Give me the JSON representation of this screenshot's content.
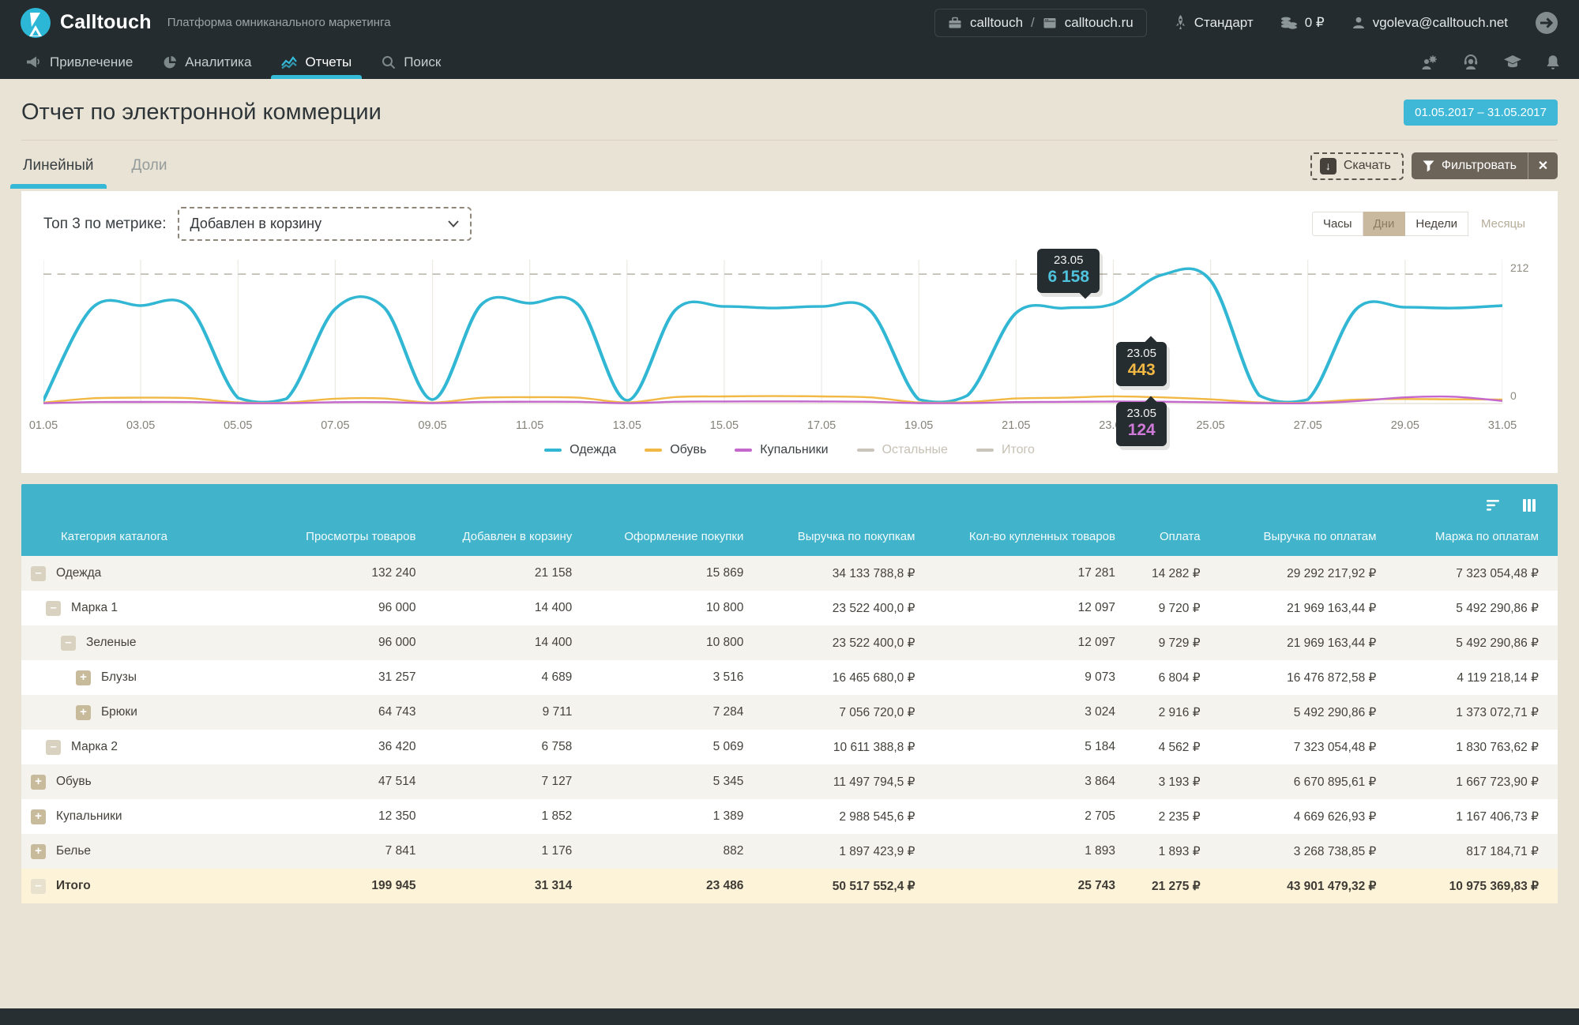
{
  "header": {
    "logo_text": "Calltouch",
    "tagline": "Платформа омниканального маркетинга",
    "account": {
      "company": "calltouch",
      "separator": "/",
      "site": "calltouch.ru"
    },
    "plan": "Стандарт",
    "balance": "0 ₽",
    "user_email": "vgoleva@calltouch.net"
  },
  "nav": {
    "items": [
      {
        "label": "Привлечение",
        "active": false
      },
      {
        "label": "Аналитика",
        "active": false
      },
      {
        "label": "Отчеты",
        "active": true
      },
      {
        "label": "Поиск",
        "active": false
      }
    ]
  },
  "page": {
    "title": "Отчет по электронной коммерции",
    "date_range": "01.05.2017 – 31.05.2017",
    "tabs": [
      {
        "label": "Линейный"
      },
      {
        "label": "Доли"
      }
    ],
    "download_label": "Скачать",
    "filter_label": "Фильтровать",
    "close_label": "✕"
  },
  "chart": {
    "metric_label": "Топ 3 по метрике:",
    "metric_value": "Добавлен в корзину",
    "periods": [
      {
        "label": "Часы",
        "state": "normal"
      },
      {
        "label": "Дни",
        "state": "active"
      },
      {
        "label": "Недели",
        "state": "normal"
      },
      {
        "label": "Месяцы",
        "state": "disabled"
      }
    ]
  },
  "chart_data": {
    "type": "line",
    "title": "Топ 3 по метрике: Добавлен в корзину, по дням 01.05.2017 – 31.05.2017",
    "x": [
      "01.05",
      "02.05",
      "03.05",
      "04.05",
      "05.05",
      "06.05",
      "07.05",
      "08.05",
      "09.05",
      "10.05",
      "11.05",
      "12.05",
      "13.05",
      "14.05",
      "15.05",
      "16.05",
      "17.05",
      "18.05",
      "19.05",
      "20.05",
      "21.05",
      "22.05",
      "23.05",
      "24.05",
      "25.05",
      "26.05",
      "27.05",
      "28.05",
      "29.05",
      "30.05",
      "31.05"
    ],
    "tick_every": 2,
    "ylim": [
      0,
      8200
    ],
    "dashed_gridline_value": 8000,
    "right_axis": {
      "top": "212",
      "bottom": "0"
    },
    "grid": true,
    "legend_position": "bottom",
    "series": [
      {
        "name": "Одежда",
        "color": "#31b7d3",
        "disabled": false,
        "values": [
          200,
          5900,
          6050,
          5950,
          350,
          300,
          5850,
          5950,
          250,
          6100,
          6200,
          6100,
          200,
          5800,
          6000,
          5900,
          6000,
          5750,
          250,
          500,
          5600,
          5900,
          6158,
          7950,
          7600,
          500,
          250,
          5850,
          5950,
          5900,
          6050
        ]
      },
      {
        "name": "Обувь",
        "color": "#f2b844",
        "disabled": false,
        "values": [
          60,
          320,
          360,
          330,
          70,
          60,
          300,
          310,
          60,
          350,
          390,
          360,
          70,
          400,
          440,
          460,
          440,
          380,
          70,
          90,
          310,
          360,
          443,
          380,
          260,
          70,
          60,
          240,
          280,
          260,
          250
        ]
      },
      {
        "name": "Купальники",
        "color": "#c468ce",
        "disabled": false,
        "values": [
          20,
          90,
          100,
          95,
          25,
          20,
          85,
          90,
          25,
          100,
          110,
          105,
          20,
          110,
          125,
          130,
          125,
          105,
          25,
          30,
          90,
          105,
          124,
          110,
          80,
          25,
          20,
          150,
          380,
          420,
          160
        ]
      },
      {
        "name": "Остальные",
        "color": "#c9c5bb",
        "disabled": true,
        "values": []
      },
      {
        "name": "Итого",
        "color": "#c9c5bb",
        "disabled": true,
        "values": []
      }
    ],
    "tooltips": [
      {
        "date": "23.05",
        "value": "6 158",
        "series": "Одежда"
      },
      {
        "date": "23.05",
        "value": "443",
        "series": "Обувь"
      },
      {
        "date": "23.05",
        "value": "124",
        "series": "Купальники"
      }
    ]
  },
  "table": {
    "columns": [
      "Категория каталога",
      "Просмотры товаров",
      "Добавлен в корзину",
      "Оформление покупки",
      "Выручка по покупкам",
      "Кол-во купленных товаров",
      "Оплата",
      "Выручка по оплатам",
      "Маржа по оплатам"
    ],
    "rows": [
      {
        "level": 0,
        "expand": "minus",
        "name": "Одежда",
        "total": false,
        "cells": [
          "132 240",
          "21 158",
          "15 869",
          "34 133 788,8 ₽",
          "17 281",
          "14 282 ₽",
          "29 292 217,92 ₽",
          "7 323 054,48 ₽"
        ]
      },
      {
        "level": 1,
        "expand": "minus",
        "name": "Марка 1",
        "total": false,
        "cells": [
          "96 000",
          "14 400",
          "10 800",
          "23 522 400,0 ₽",
          "12 097",
          "9 720 ₽",
          "21 969 163,44 ₽",
          "5 492 290,86 ₽"
        ]
      },
      {
        "level": 2,
        "expand": "minus",
        "name": "Зеленые",
        "total": false,
        "cells": [
          "96 000",
          "14 400",
          "10 800",
          "23 522 400,0 ₽",
          "12 097",
          "9 729 ₽",
          "21 969 163,44 ₽",
          "5 492 290,86 ₽"
        ]
      },
      {
        "level": 3,
        "expand": "plus",
        "name": "Блузы",
        "total": false,
        "cells": [
          "31 257",
          "4 689",
          "3 516",
          "16 465 680,0 ₽",
          "9 073",
          "6 804 ₽",
          "16 476 872,58 ₽",
          "4 119 218,14 ₽"
        ]
      },
      {
        "level": 3,
        "expand": "plus",
        "name": "Брюки",
        "total": false,
        "cells": [
          "64 743",
          "9 711",
          "7 284",
          "7 056 720,0 ₽",
          "3 024",
          "2 916 ₽",
          "5 492 290,86 ₽",
          "1 373 072,71 ₽"
        ]
      },
      {
        "level": 1,
        "expand": "minus",
        "name": "Марка 2",
        "total": false,
        "cells": [
          "36 420",
          "6 758",
          "5 069",
          "10 611 388,8 ₽",
          "5 184",
          "4 562 ₽",
          "7 323 054,48 ₽",
          "1 830 763,62 ₽"
        ]
      },
      {
        "level": 0,
        "expand": "plus",
        "name": "Обувь",
        "total": false,
        "cells": [
          "47 514",
          "7 127",
          "5 345",
          "11 497 794,5 ₽",
          "3 864",
          "3 193 ₽",
          "6 670 895,61 ₽",
          "1 667 723,90 ₽"
        ]
      },
      {
        "level": 0,
        "expand": "plus",
        "name": "Купальники",
        "total": false,
        "cells": [
          "12 350",
          "1 852",
          "1 389",
          "2 988 545,6 ₽",
          "2 705",
          "2 235 ₽",
          "4 669 626,93 ₽",
          "1 167 406,73 ₽"
        ]
      },
      {
        "level": 0,
        "expand": "plus",
        "name": "Белье",
        "total": false,
        "cells": [
          "7 841",
          "1 176",
          "882",
          "1 897 423,9 ₽",
          "1 893",
          "1 893 ₽",
          "3 268 738,85 ₽",
          "817 184,71 ₽"
        ]
      },
      {
        "level": 0,
        "expand": "minus",
        "name": "Итого",
        "total": true,
        "cells": [
          "199 945",
          "31 314",
          "23 486",
          "50 517 552,4 ₽",
          "25 743",
          "21 275 ₽",
          "43 901 479,32 ₽",
          "10 975 369,83 ₽"
        ]
      }
    ]
  }
}
